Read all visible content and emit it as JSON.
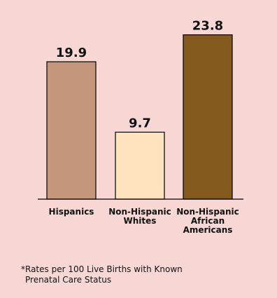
{
  "chart_data": {
    "type": "bar",
    "title": "",
    "xlabel": "",
    "ylabel": "",
    "ylim": [
      0,
      26
    ],
    "grid": false,
    "categories": [
      [
        "Hispanics"
      ],
      [
        "Non-Hispanic",
        "Whites"
      ],
      [
        "Non-Hispanic",
        "African",
        "Americans"
      ]
    ],
    "values": [
      19.9,
      9.7,
      23.8
    ],
    "value_labels": [
      "19.9",
      "9.7",
      "23.8"
    ],
    "colors": [
      "#c4977d",
      "#ffe3be",
      "#855a1f"
    ]
  },
  "footnote": {
    "line1": "*Rates per 100 Live Births with Known",
    "line2": "Prenatal Care Status"
  },
  "colors": {
    "background": "#f8d7d5",
    "axis": "#000000",
    "bar_outline": "#000000"
  }
}
